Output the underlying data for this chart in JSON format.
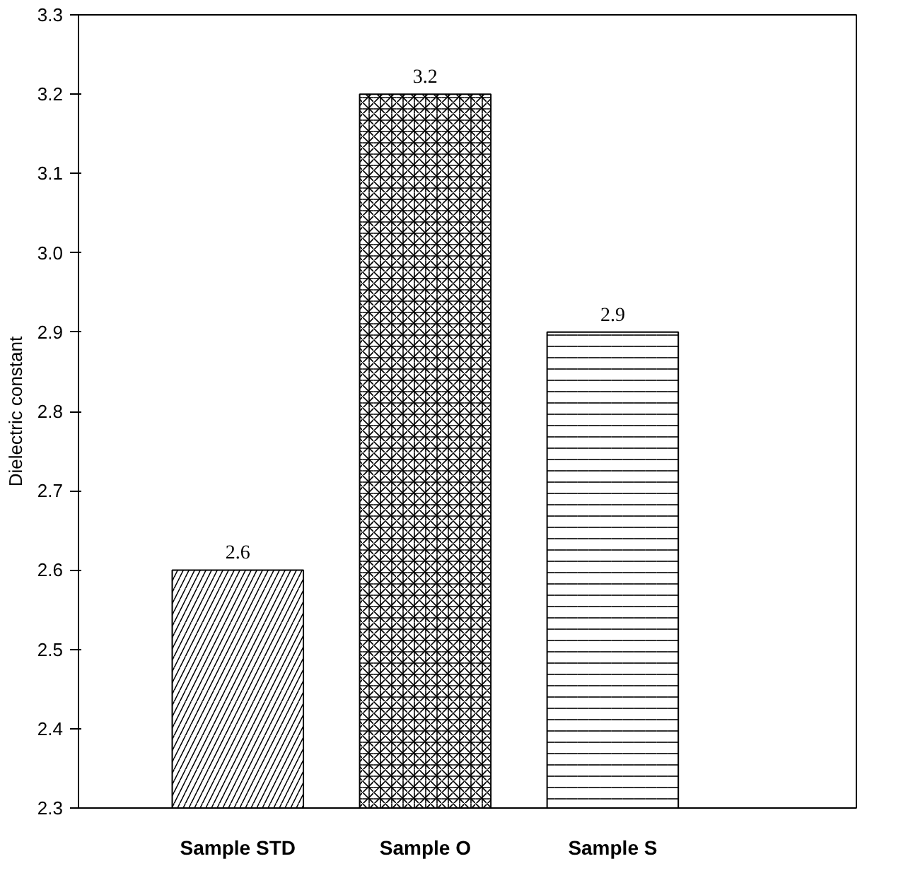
{
  "chart_data": {
    "type": "bar",
    "ylabel": "Dielectric constant",
    "categories": [
      "Sample STD",
      "Sample O",
      "Sample S"
    ],
    "values": [
      2.6,
      3.2,
      2.9
    ],
    "color": "#000000",
    "ylim": [
      2.3,
      3.3
    ],
    "yticks": [
      2.3,
      2.4,
      2.5,
      2.6,
      2.7,
      2.8,
      2.9,
      {
        "value": 3,
        "label": "3.0"
      },
      3.1,
      3.2,
      3.3
    ],
    "data_labels": true
  }
}
